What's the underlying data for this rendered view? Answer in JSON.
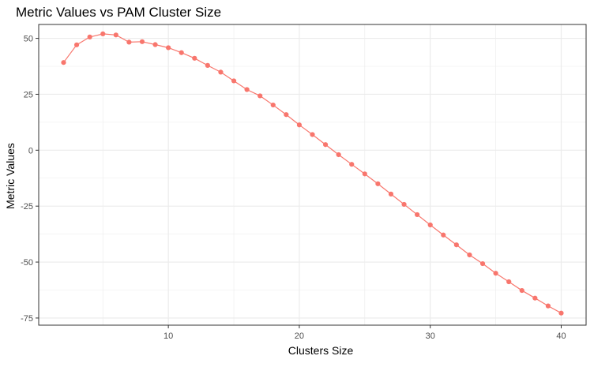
{
  "chart_data": {
    "type": "line",
    "title": "Metric Values vs PAM Cluster Size",
    "xlabel": "Clusters Size",
    "ylabel": "Metric Values",
    "xlim": [
      0.1,
      41.9
    ],
    "ylim": [
      -78.2,
      56.2
    ],
    "x_ticks": [
      10,
      20,
      30,
      40
    ],
    "x_tick_labels": [
      "10",
      "20",
      "30",
      "40"
    ],
    "y_ticks": [
      -75,
      -50,
      -25,
      0,
      25,
      50
    ],
    "y_tick_labels": [
      "-75",
      "-50",
      "-25",
      "0",
      "25",
      "50"
    ],
    "grid": true,
    "series_color": "#f8766d",
    "x": [
      2,
      3,
      4,
      5,
      6,
      7,
      8,
      9,
      10,
      11,
      12,
      13,
      14,
      15,
      16,
      17,
      18,
      19,
      20,
      21,
      22,
      23,
      24,
      25,
      26,
      27,
      28,
      29,
      30,
      31,
      32,
      33,
      34,
      35,
      36,
      37,
      38,
      39,
      40
    ],
    "values": [
      39.2,
      47.1,
      50.6,
      52.0,
      51.5,
      48.3,
      48.5,
      47.2,
      45.8,
      43.6,
      41.1,
      37.9,
      34.9,
      31.0,
      27.1,
      24.3,
      20.2,
      15.9,
      11.3,
      7.0,
      2.5,
      -2.0,
      -6.3,
      -10.6,
      -15.0,
      -19.6,
      -24.2,
      -28.8,
      -33.4,
      -37.9,
      -42.3,
      -46.8,
      -50.7,
      -55.0,
      -58.8,
      -62.7,
      -66.1,
      -69.6,
      -72.8
    ]
  }
}
